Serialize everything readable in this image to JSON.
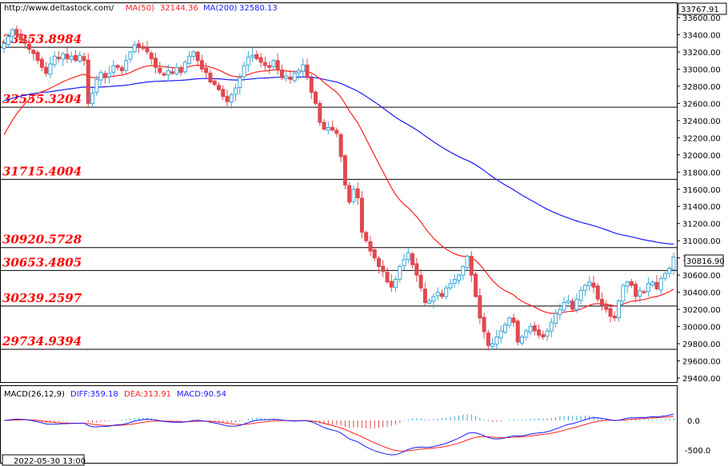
{
  "header": {
    "url": "http://www.deltastock.com/",
    "ma50_label": "MA(50)",
    "ma50_value": "32144.36",
    "ma200_label": "MA(200)",
    "ma200_value": "32580.13"
  },
  "price_axis": {
    "top_price_label": "33767.91",
    "current_price_label": "30816.90",
    "ticks": [
      "33600.00",
      "33400.00",
      "33200.00",
      "33000.00",
      "32800.00",
      "32600.00",
      "32400.00",
      "32200.00",
      "32000.00",
      "31800.00",
      "31600.00",
      "31400.00",
      "31200.00",
      "31000.00",
      "30800.00",
      "30600.00",
      "30400.00",
      "30200.00",
      "30000.00",
      "29800.00",
      "29600.00",
      "29400.00"
    ]
  },
  "macd_panel": {
    "title": "MACD(26,12,9)",
    "diff_label": "DIFF:359.18",
    "dea_label": "DEA:313.91",
    "macd_label": "MACD:90.54",
    "ticks": [
      "0.0",
      "-500.0"
    ]
  },
  "time_label": "2022-05-30 13:00",
  "colors": {
    "bull": "#3aa7d8",
    "bear": "#e0494f",
    "ma50": "#ff2020",
    "ma200": "#1a1aff",
    "level_text": "#ff0000"
  },
  "chart_data": {
    "type": "candlestick",
    "ylim": [
      29330,
      33780
    ],
    "levels": [
      {
        "label": "33253.8984",
        "value": 33253.8984
      },
      {
        "label": "32555.3204",
        "value": 32555.3204
      },
      {
        "label": "31715.4004",
        "value": 31715.4004
      },
      {
        "label": "30920.5728",
        "value": 30920.5728
      },
      {
        "label": "30653.4805",
        "value": 30653.4805
      },
      {
        "label": "30239.2597",
        "value": 30239.2597
      },
      {
        "label": "29734.9394",
        "value": 29734.9394
      }
    ],
    "close": [
      33300,
      33380,
      33460,
      33400,
      33340,
      33300,
      33230,
      33180,
      33100,
      33020,
      32950,
      33060,
      33150,
      33120,
      33180,
      33120,
      33150,
      33100,
      33160,
      33100,
      32600,
      32720,
      32880,
      32960,
      32900,
      32950,
      33040,
      33020,
      32980,
      33100,
      33200,
      33280,
      33260,
      33240,
      33200,
      33120,
      33020,
      32960,
      32930,
      32980,
      32950,
      33020,
      32960,
      33080,
      33150,
      33200,
      33100,
      33000,
      32960,
      32850,
      32820,
      32760,
      32680,
      32620,
      32700,
      32780,
      32900,
      33040,
      33140,
      33160,
      33120,
      33080,
      33040,
      33020,
      33100,
      33000,
      32900,
      32920,
      32880,
      32950,
      32980,
      33050,
      32900,
      32730,
      32600,
      32380,
      32300,
      32320,
      32290,
      32250,
      31980,
      31650,
      31450,
      31600,
      31500,
      31100,
      31000,
      30880,
      30800,
      30700,
      30640,
      30520,
      30460,
      30550,
      30700,
      30780,
      30860,
      30720,
      30600,
      30450,
      30280,
      30300,
      30350,
      30400,
      30350,
      30450,
      30500,
      30550,
      30600,
      30700,
      30820,
      30600,
      30350,
      30100,
      29940,
      29780,
      29800,
      29880,
      29950,
      30020,
      30100,
      30050,
      29820,
      29880,
      29950,
      30000,
      29950,
      29900,
      29880,
      29950,
      30050,
      30150,
      30200,
      30280,
      30300,
      30200,
      30320,
      30420,
      30480,
      30520,
      30460,
      30320,
      30250,
      30200,
      30120,
      30100,
      30300,
      30480,
      30520,
      30480,
      30350,
      30420,
      30400,
      30500,
      30520,
      30440,
      30560,
      30620,
      30680,
      30810
    ]
  }
}
